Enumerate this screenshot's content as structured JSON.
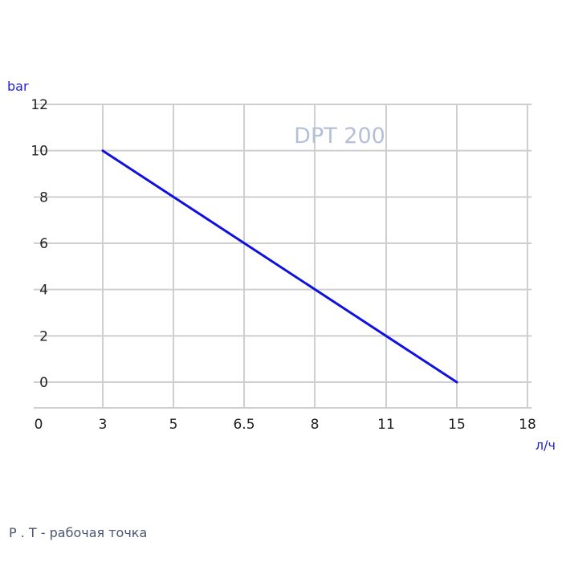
{
  "chart_data": {
    "type": "line",
    "title": "DPT 200",
    "xlabel": "л/ч",
    "ylabel": "bar",
    "x_ticks": [
      "0",
      "3",
      "5",
      "6.5",
      "8",
      "11",
      "15",
      "18"
    ],
    "y_ticks": [
      "0",
      "2",
      "4",
      "6",
      "8",
      "10",
      "12"
    ],
    "ylim": [
      0,
      12
    ],
    "grid": true,
    "legend": "none",
    "series": [
      {
        "x": [
          3,
          15
        ],
        "y": [
          10,
          0
        ],
        "color": "#1010e0"
      }
    ]
  },
  "footnote": "P . T - рабочая точка"
}
